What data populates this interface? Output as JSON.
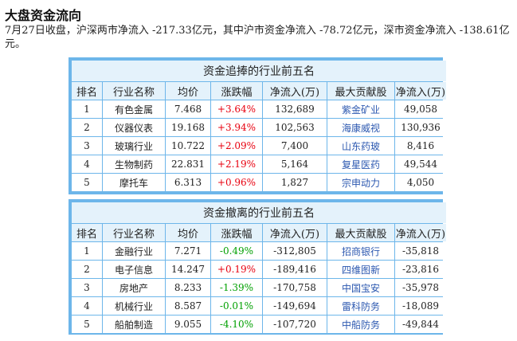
{
  "page": {
    "title": "大盘资金流向",
    "summary": "7月27日收盘，沪深两市净流入 -217.33亿元，其中沪市资金净流入 -78.72亿元，深市资金净流入 -138.61亿元。"
  },
  "columns": [
    "排名",
    "行业名称",
    "均价",
    "涨跌幅",
    "净流入(万)",
    "最大贡献股",
    "净流入(万)"
  ],
  "inflow_table": {
    "caption": "资金追捧的行业前五名",
    "rows": [
      {
        "rank": "1",
        "industry": "有色金属",
        "avg_price": "7.468",
        "change": "+3.64%",
        "net_inflow": "132,689",
        "top_stock": "紫金矿业",
        "stock_inflow": "49,058"
      },
      {
        "rank": "2",
        "industry": "仪器仪表",
        "avg_price": "19.168",
        "change": "+3.94%",
        "net_inflow": "102,563",
        "top_stock": "海康威视",
        "stock_inflow": "130,936"
      },
      {
        "rank": "3",
        "industry": "玻璃行业",
        "avg_price": "10.722",
        "change": "+2.09%",
        "net_inflow": "7,400",
        "top_stock": "山东药玻",
        "stock_inflow": "8,416"
      },
      {
        "rank": "4",
        "industry": "生物制药",
        "avg_price": "22.831",
        "change": "+2.19%",
        "net_inflow": "5,164",
        "top_stock": "复星医药",
        "stock_inflow": "49,544"
      },
      {
        "rank": "5",
        "industry": "摩托车",
        "avg_price": "6.313",
        "change": "+0.96%",
        "net_inflow": "1,827",
        "top_stock": "宗申动力",
        "stock_inflow": "4,050"
      }
    ]
  },
  "outflow_table": {
    "caption": "资金撤离的行业前五名",
    "rows": [
      {
        "rank": "1",
        "industry": "金融行业",
        "avg_price": "7.271",
        "change": "-0.49%",
        "net_inflow": "-312,805",
        "top_stock": "招商银行",
        "stock_inflow": "-35,818"
      },
      {
        "rank": "2",
        "industry": "电子信息",
        "avg_price": "14.247",
        "change": "+0.19%",
        "net_inflow": "-189,416",
        "top_stock": "四维图新",
        "stock_inflow": "-23,816"
      },
      {
        "rank": "3",
        "industry": "房地产",
        "avg_price": "8.233",
        "change": "-1.39%",
        "net_inflow": "-170,758",
        "top_stock": "中国宝安",
        "stock_inflow": "-35,978"
      },
      {
        "rank": "4",
        "industry": "机械行业",
        "avg_price": "8.587",
        "change": "-0.01%",
        "net_inflow": "-149,694",
        "top_stock": "雷科防务",
        "stock_inflow": "-18,089"
      },
      {
        "rank": "5",
        "industry": "船舶制造",
        "avg_price": "9.055",
        "change": "-4.10%",
        "net_inflow": "-107,720",
        "top_stock": "中船防务",
        "stock_inflow": "-49,844"
      }
    ]
  },
  "colors": {
    "panel_border": "#6db6ea",
    "header_bg": "#e4f2fb",
    "positive": "#e8000f",
    "negative": "#00a000",
    "stock_link": "#2c58b0"
  }
}
